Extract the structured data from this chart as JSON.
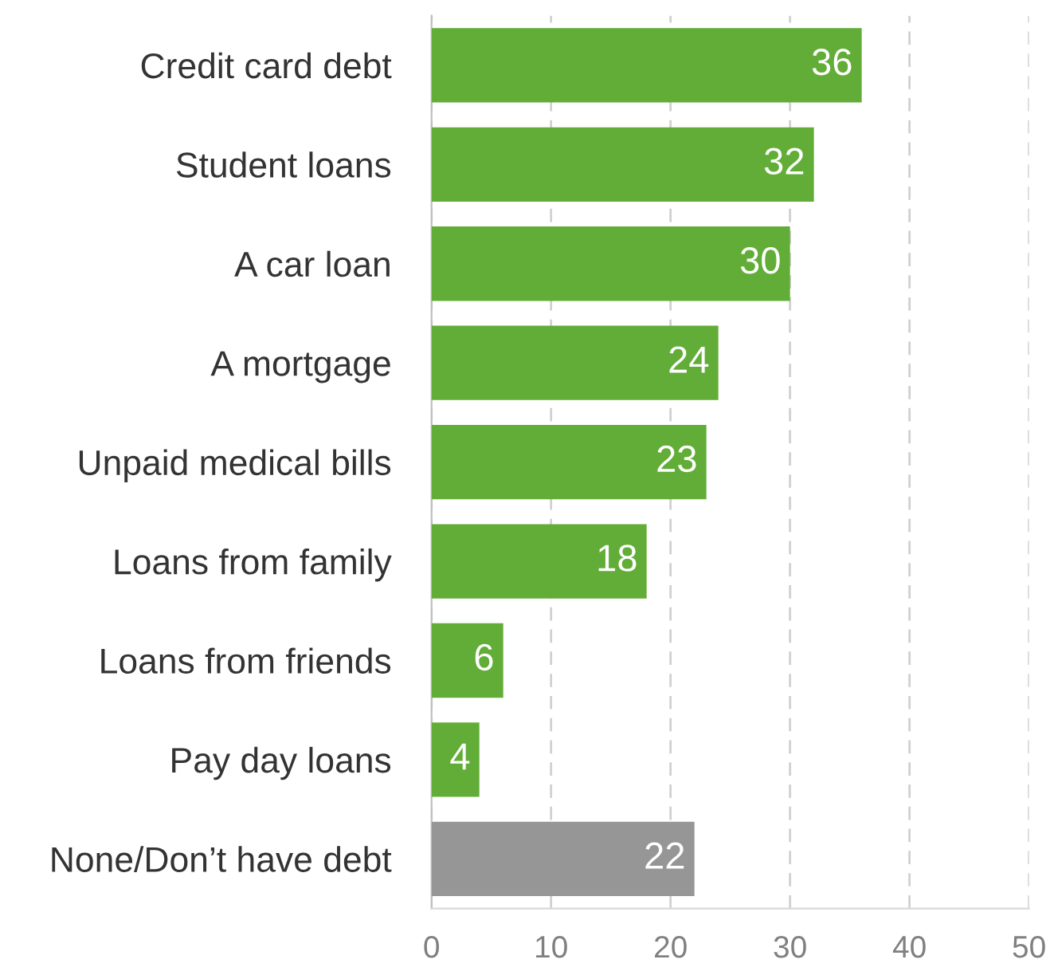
{
  "chart_data": {
    "type": "bar",
    "orientation": "horizontal",
    "categories": [
      "Credit card debt",
      "Student loans",
      "A car loan",
      "A mortgage",
      "Unpaid medical bills",
      "Loans from family",
      "Loans from friends",
      "Pay day loans",
      "None/Don’t have debt"
    ],
    "values": [
      36,
      32,
      30,
      24,
      23,
      18,
      6,
      4,
      22
    ],
    "colors": [
      "#62ad37",
      "#62ad37",
      "#62ad37",
      "#62ad37",
      "#62ad37",
      "#62ad37",
      "#62ad37",
      "#62ad37",
      "#969696"
    ],
    "xlim": [
      0,
      50
    ],
    "xticks": [
      0,
      10,
      20,
      30,
      40,
      50
    ],
    "grid": "x",
    "data_labels": true
  }
}
